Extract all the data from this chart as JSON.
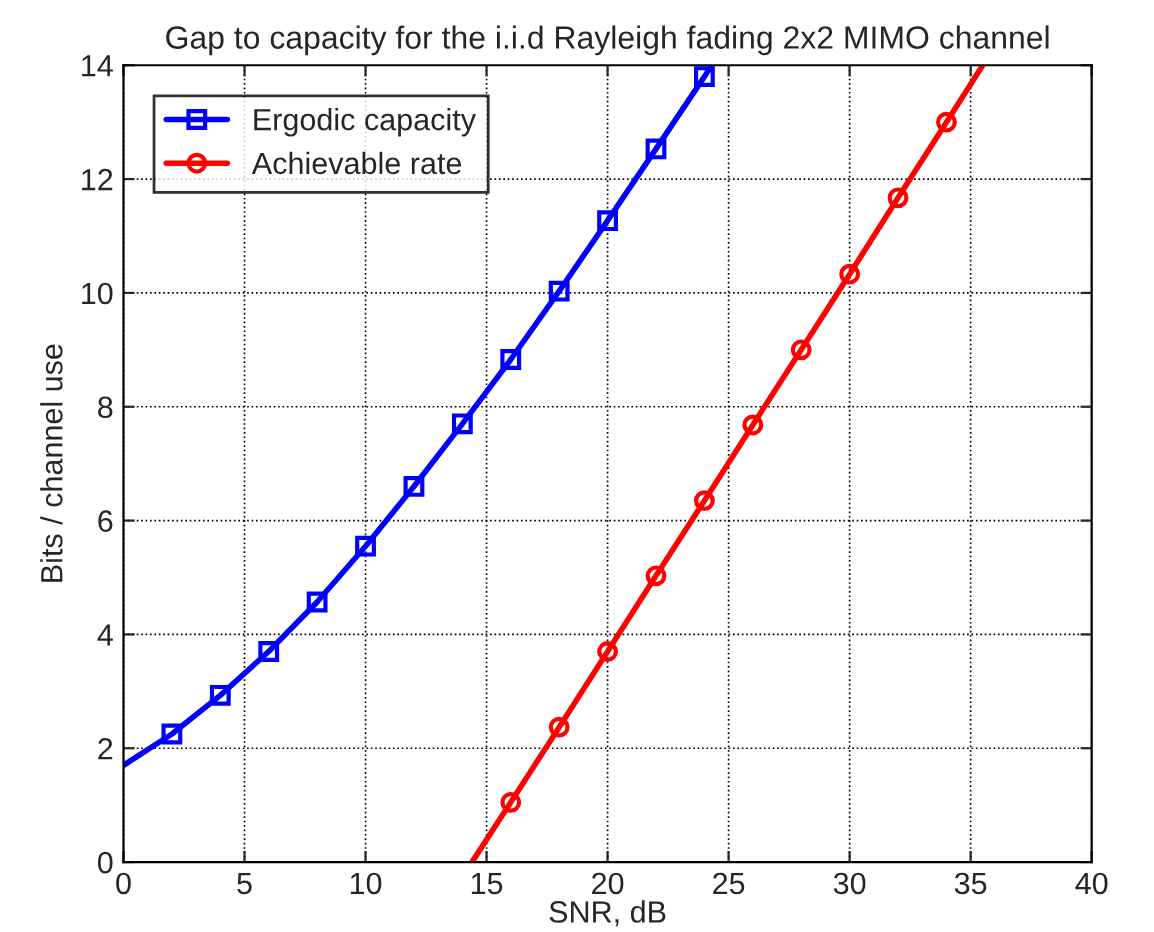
{
  "chart_data": {
    "type": "line",
    "title": "Gap to capacity for the i.i.d Rayleigh fading 2x2 MIMO channel",
    "xlabel": "SNR, dB",
    "ylabel": "Bits / channel use",
    "series": [
      {
        "name": "Ergodic capacity",
        "color": "#0000ff",
        "marker": "square",
        "x": [
          0,
          2,
          4,
          6,
          8,
          10,
          12,
          14,
          16,
          18,
          20,
          22,
          24,
          24.3
        ],
        "values": [
          1.7,
          2.25,
          2.93,
          3.7,
          4.57,
          5.55,
          6.6,
          7.7,
          8.83,
          10.03,
          11.27,
          12.53,
          13.8,
          14.0
        ]
      },
      {
        "name": "Achievable rate",
        "color": "#ff0000",
        "marker": "circle",
        "x": [
          14.4,
          16,
          18,
          20,
          22,
          24,
          26,
          28,
          30,
          32,
          34,
          35.5
        ],
        "values": [
          0,
          1.05,
          2.37,
          3.7,
          5.03,
          6.35,
          7.68,
          9.0,
          10.33,
          11.67,
          13.0,
          14.0
        ]
      }
    ],
    "xlim": [
      0,
      40
    ],
    "ylim": [
      0,
      14
    ],
    "xticks": [
      0,
      5,
      10,
      15,
      20,
      25,
      30,
      35,
      40
    ],
    "yticks": [
      0,
      2,
      4,
      6,
      8,
      10,
      12,
      14
    ],
    "grid": true,
    "legend": "top left",
    "line_style": "solid"
  }
}
